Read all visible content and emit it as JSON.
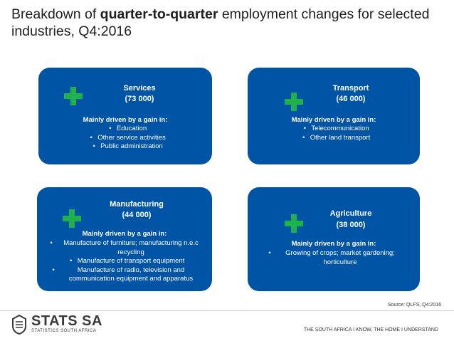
{
  "title": {
    "part1": "Breakdown of ",
    "bold": "quarter-to-quarter",
    "part2": " employment changes for selected industries, Q4:2016"
  },
  "cards": {
    "services": {
      "name": "Services",
      "value": "(73 000)",
      "driver": "Mainly driven by a gain in:",
      "bullets": [
        "Education",
        "Other service activities",
        "Public administration"
      ]
    },
    "transport": {
      "name": "Transport",
      "value": "(46 000)",
      "driver": "Mainly driven by a gain in:",
      "bullets": [
        "Telecommunication",
        "Other land transport"
      ]
    },
    "manufacturing": {
      "name": "Manufacturing",
      "value": "(44 000)",
      "driver": "Mainly driven by a gain in:",
      "bullets": [
        "Manufacture of furniture; manufacturing n.e.c recycling",
        "Manufacture of transport equipment",
        "Manufacture of radio, television and communication equipment and apparatus"
      ]
    },
    "agriculture": {
      "name": "Agriculture",
      "value": "(38 000)",
      "driver": "Mainly driven by a gain in:",
      "bullets": [
        "Growing of crops; market gardening; horticulture"
      ]
    }
  },
  "bullet_char": "•",
  "source": "Source: QLFS, Q4:2016",
  "logo": {
    "name": "STATS SA",
    "sub": "STATISTICS SOUTH AFRICA"
  },
  "tagline": "THE SOUTH AFRICA I KNOW, THE HOME I UNDERSTAND",
  "colors": {
    "card": "#0054a6",
    "plus": "#1fb24a"
  },
  "icons": [
    "plus-icon",
    "stats-sa-logo-icon"
  ]
}
